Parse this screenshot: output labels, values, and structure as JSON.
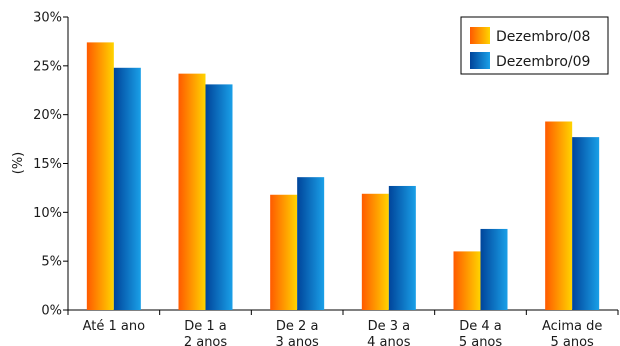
{
  "chart_data": {
    "type": "bar",
    "categories": [
      [
        "Até 1 ano"
      ],
      [
        "De 1 a",
        "2 anos"
      ],
      [
        "De 2 a",
        "3 anos"
      ],
      [
        "De 3 a",
        "4 anos"
      ],
      [
        "De 4 a",
        "5 anos"
      ],
      [
        "Acima de",
        "5 anos"
      ]
    ],
    "series": [
      {
        "name": "Dezembro/08",
        "values": [
          27.4,
          24.2,
          11.8,
          11.9,
          6.0,
          19.3
        ]
      },
      {
        "name": "Dezembro/09",
        "values": [
          24.8,
          23.1,
          13.6,
          12.7,
          8.3,
          17.7
        ]
      }
    ],
    "ylabel": "(%)",
    "ylim": [
      0,
      30
    ],
    "yticks": [
      0,
      5,
      10,
      15,
      20,
      25,
      30
    ],
    "ytick_labels": [
      "0%",
      "5%",
      "10%",
      "15%",
      "20%",
      "25%",
      "30%"
    ],
    "grid": false,
    "legend_position": "top-right",
    "colors": {
      "series1_from": "#ff5a00",
      "series1_to": "#ffd400",
      "series2_from": "#00449a",
      "series2_to": "#1aa0e8"
    }
  }
}
